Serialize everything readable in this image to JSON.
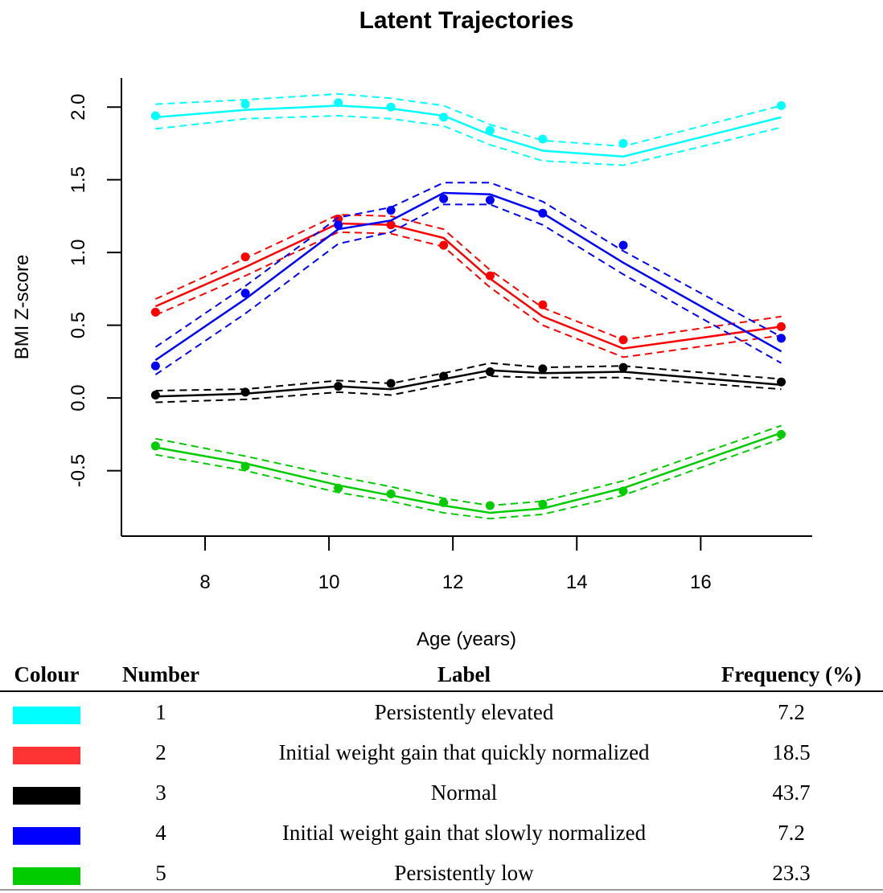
{
  "chart_data": {
    "type": "line",
    "title": "Latent Trajectories",
    "xlabel": "Age (years)",
    "ylabel": "BMI Z-score",
    "xlim": [
      6.65,
      17.8
    ],
    "ylim": [
      -0.95,
      2.2
    ],
    "xticks": [
      8,
      10,
      12,
      14,
      16
    ],
    "yticks": [
      -0.5,
      0.0,
      0.5,
      1.0,
      1.5,
      2.0
    ],
    "ytick_labels": [
      "-0.5",
      "0.0",
      "0.5",
      "1.0",
      "1.5",
      "2.0"
    ],
    "x": [
      7.2,
      8.65,
      10.15,
      11.0,
      11.85,
      12.6,
      13.45,
      14.75,
      17.3
    ],
    "series": [
      {
        "name": "1",
        "color": "#00FFFF",
        "points": [
          1.94,
          2.02,
          2.03,
          2.0,
          1.93,
          1.84,
          1.78,
          1.75,
          2.01
        ],
        "fitted": [
          1.93,
          1.98,
          2.01,
          1.99,
          1.94,
          1.81,
          1.7,
          1.66,
          1.93
        ],
        "lower": [
          1.85,
          1.92,
          1.94,
          1.92,
          1.87,
          1.74,
          1.63,
          1.6,
          1.86
        ],
        "upper": [
          2.02,
          2.05,
          2.09,
          2.06,
          2.01,
          1.88,
          1.77,
          1.73,
          2.01
        ]
      },
      {
        "name": "2",
        "color": "#FF0000",
        "points": [
          0.59,
          0.97,
          1.23,
          1.19,
          1.05,
          0.84,
          0.64,
          0.4,
          0.49
        ],
        "fitted": [
          0.63,
          0.9,
          1.2,
          1.19,
          1.1,
          0.82,
          0.56,
          0.34,
          0.49
        ],
        "lower": [
          0.57,
          0.84,
          1.14,
          1.13,
          1.04,
          0.76,
          0.5,
          0.28,
          0.43
        ],
        "upper": [
          0.68,
          0.96,
          1.26,
          1.25,
          1.16,
          0.88,
          0.62,
          0.4,
          0.56
        ]
      },
      {
        "name": "3",
        "color": "#000000",
        "points": [
          0.02,
          0.04,
          0.08,
          0.1,
          0.15,
          0.18,
          0.2,
          0.21,
          0.11
        ],
        "fitted": [
          0.01,
          0.03,
          0.08,
          0.06,
          0.13,
          0.19,
          0.17,
          0.18,
          0.09
        ],
        "lower": [
          -0.03,
          -0.01,
          0.04,
          0.02,
          0.09,
          0.15,
          0.14,
          0.14,
          0.06
        ],
        "upper": [
          0.05,
          0.06,
          0.12,
          0.1,
          0.17,
          0.24,
          0.21,
          0.22,
          0.13
        ]
      },
      {
        "name": "4",
        "color": "#0000FF",
        "points": [
          0.22,
          0.72,
          1.19,
          1.29,
          1.37,
          1.36,
          1.27,
          1.05,
          0.41
        ],
        "fitted": [
          0.26,
          0.68,
          1.16,
          1.22,
          1.41,
          1.4,
          1.27,
          0.93,
          0.32
        ],
        "lower": [
          0.16,
          0.58,
          1.06,
          1.14,
          1.33,
          1.33,
          1.19,
          0.85,
          0.24
        ],
        "upper": [
          0.35,
          0.77,
          1.24,
          1.31,
          1.48,
          1.48,
          1.35,
          1.01,
          0.42
        ]
      },
      {
        "name": "5",
        "color": "#00CC00",
        "points": [
          -0.33,
          -0.47,
          -0.62,
          -0.66,
          -0.72,
          -0.74,
          -0.73,
          -0.64,
          -0.25
        ],
        "fitted": [
          -0.34,
          -0.45,
          -0.6,
          -0.67,
          -0.74,
          -0.79,
          -0.76,
          -0.62,
          -0.24
        ],
        "lower": [
          -0.39,
          -0.5,
          -0.65,
          -0.71,
          -0.79,
          -0.83,
          -0.8,
          -0.67,
          -0.28
        ],
        "upper": [
          -0.28,
          -0.4,
          -0.54,
          -0.61,
          -0.69,
          -0.74,
          -0.71,
          -0.57,
          -0.19
        ]
      }
    ]
  },
  "legend_table": {
    "headers": {
      "colour": "Colour",
      "number": "Number",
      "label": "Label",
      "frequency": "Frequency (%)"
    },
    "rows": [
      {
        "color": "#00FFFF",
        "number": "1",
        "label": "Persistently elevated",
        "frequency": "7.2"
      },
      {
        "color": "#FF3333",
        "number": "2",
        "label": "Initial weight gain that quickly normalized",
        "frequency": "18.5"
      },
      {
        "color": "#000000",
        "number": "3",
        "label": "Normal",
        "frequency": "43.7"
      },
      {
        "color": "#0000FF",
        "number": "4",
        "label": "Initial weight gain that slowly normalized",
        "frequency": "7.2"
      },
      {
        "color": "#00CC00",
        "number": "5",
        "label": "Persistently low",
        "frequency": "23.3"
      }
    ]
  }
}
